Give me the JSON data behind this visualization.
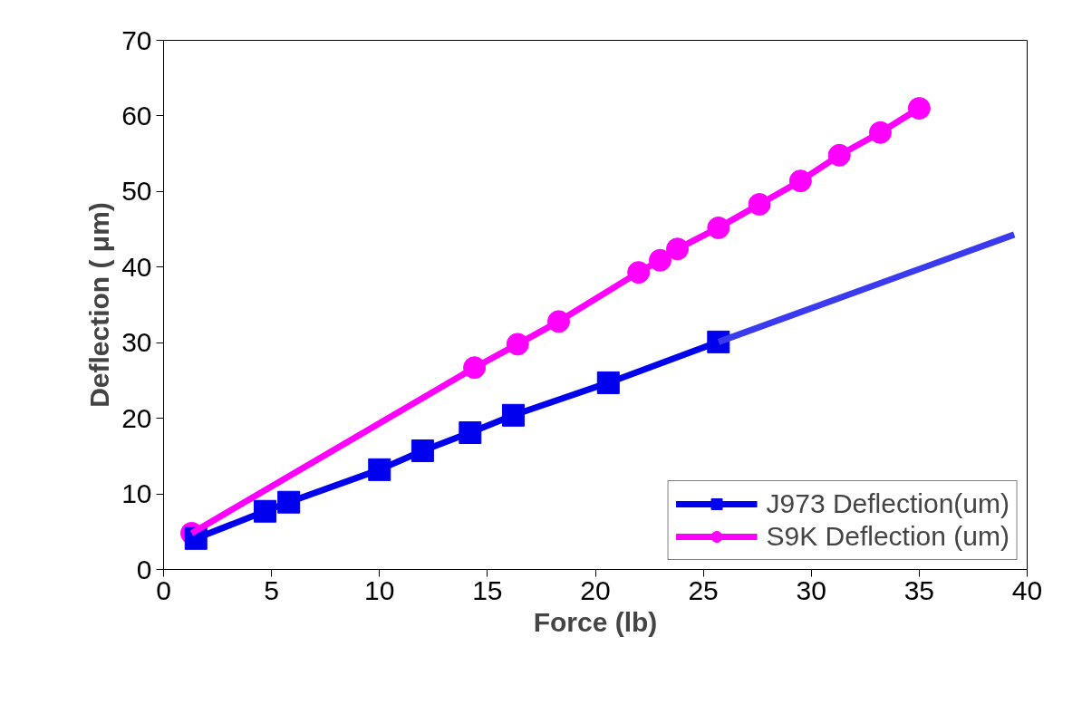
{
  "chart_data": {
    "type": "line",
    "xlabel": "Force (lb)",
    "ylabel": "Deflection ( μm)",
    "xlim": [
      0,
      40
    ],
    "ylim": [
      0,
      70
    ],
    "xticks": [
      0,
      5,
      10,
      15,
      20,
      25,
      30,
      35,
      40
    ],
    "yticks": [
      0,
      10,
      20,
      30,
      40,
      50,
      60,
      70
    ],
    "grid": false,
    "legend": "bottom right",
    "line_style": "solid",
    "series": [
      {
        "name": "J973 Deflection(um)",
        "color": "#0000ee",
        "marker": "square",
        "x": [
          1.5,
          4.7,
          5.8,
          10.0,
          12.0,
          14.2,
          16.2,
          20.6,
          25.7
        ],
        "values": [
          4.1,
          7.7,
          8.9,
          13.2,
          15.7,
          18.1,
          20.4,
          24.7,
          30.1
        ]
      },
      {
        "name": "S9K Deflection (um)",
        "color": "#ff00ff",
        "marker": "circle",
        "x": [
          1.3,
          14.4,
          16.4,
          18.3,
          22.0,
          23.0,
          23.8,
          25.7,
          27.6,
          29.5,
          31.3,
          33.2,
          35.0
        ],
        "values": [
          4.8,
          26.7,
          29.8,
          32.8,
          39.3,
          40.9,
          42.4,
          45.2,
          48.3,
          51.4,
          54.8,
          57.8,
          61.0
        ]
      },
      {
        "color": "#3a3af0",
        "marker": "none",
        "x": [
          25.7,
          39.4
        ],
        "values": [
          30.1,
          44.3
        ]
      }
    ]
  }
}
